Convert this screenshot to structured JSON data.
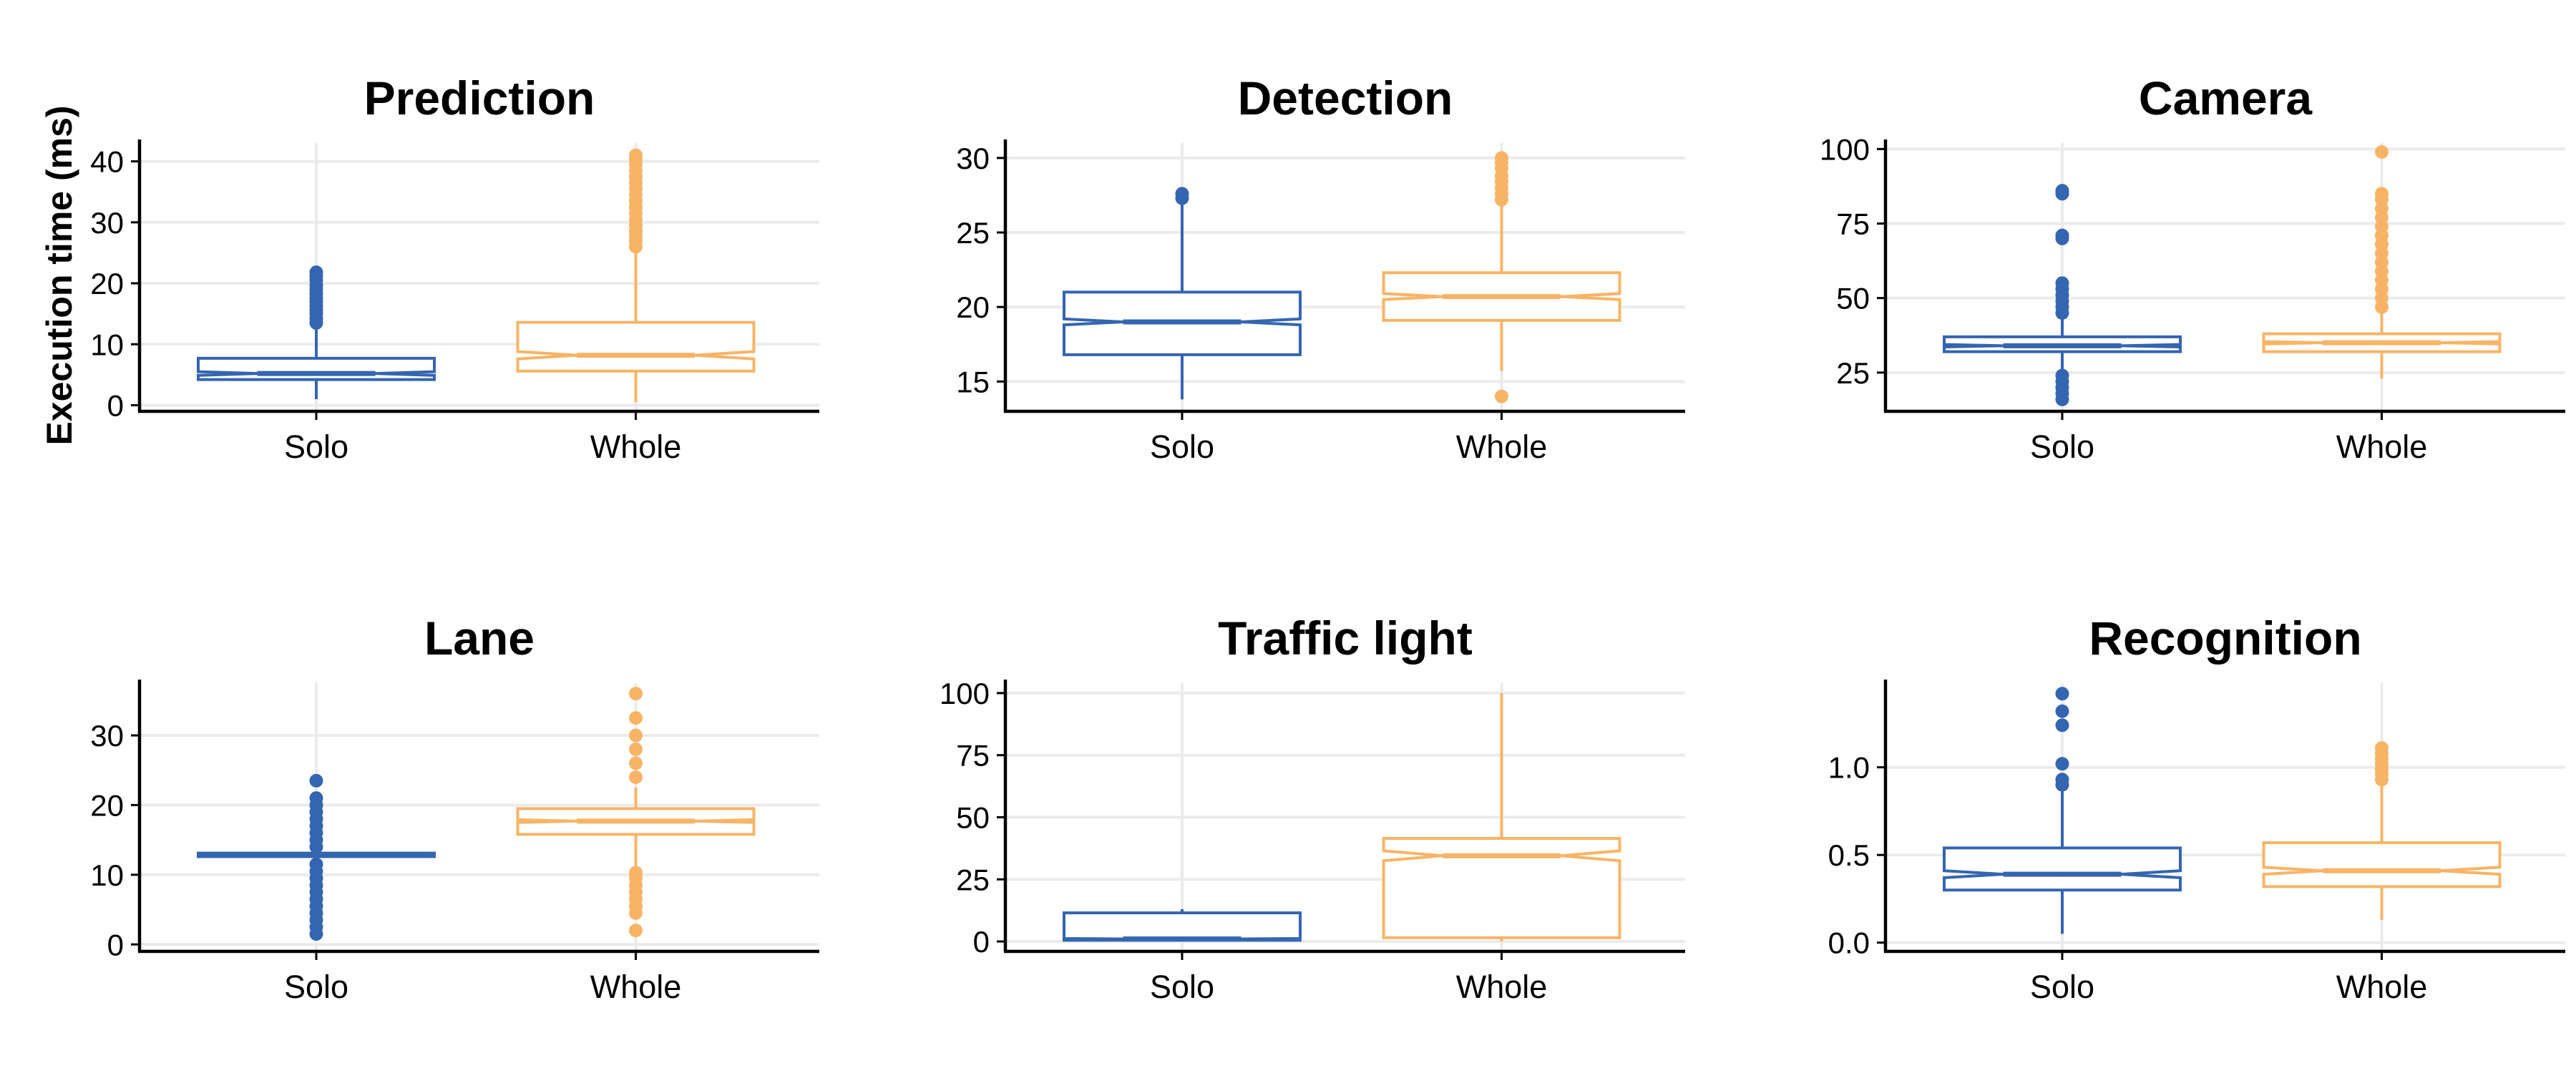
{
  "colors": {
    "solo": "#3465b0",
    "whole": "#f8b466",
    "grid": "#ebebeb",
    "axis": "#000000"
  },
  "y_axis_label": "Execution time (ms)",
  "chart_data": [
    {
      "type": "box",
      "title": "Prediction",
      "categories": [
        "Solo",
        "Whole"
      ],
      "ylim": [
        -1,
        43
      ],
      "yticks": [
        0,
        10,
        20,
        30,
        40
      ],
      "boxes": [
        {
          "category": "Solo",
          "whisker_low": 1,
          "q1": 4.2,
          "median": 5.2,
          "q3": 7.7,
          "whisker_high": 13,
          "notch": [
            4.9,
            5.5
          ],
          "outliers": [
            13.5,
            14.2,
            15,
            15.6,
            16.3,
            17,
            17.6,
            18.3,
            19,
            19.7,
            20.5,
            21.2,
            21.8
          ]
        },
        {
          "category": "Whole",
          "whisker_low": 0.5,
          "q1": 5.6,
          "median": 8.2,
          "q3": 13.6,
          "whisker_high": 25,
          "notch": [
            7.6,
            8.8
          ],
          "outliers": [
            26,
            27,
            27.8,
            28.6,
            29.5,
            30.5,
            31.5,
            32.5,
            33.5,
            34.5,
            35.5,
            36.5,
            37.5,
            38.5,
            39.5,
            40.3,
            41
          ]
        }
      ]
    },
    {
      "type": "box",
      "title": "Detection",
      "categories": [
        "Solo",
        "Whole"
      ],
      "ylim": [
        13,
        31
      ],
      "yticks": [
        15,
        20,
        25,
        30
      ],
      "boxes": [
        {
          "category": "Solo",
          "whisker_low": 13.8,
          "q1": 16.8,
          "median": 19,
          "q3": 21,
          "whisker_high": 27,
          "notch": [
            18.8,
            19.2
          ],
          "outliers": [
            27.3,
            27.6
          ]
        },
        {
          "category": "Whole",
          "whisker_low": 15.7,
          "q1": 19.1,
          "median": 20.7,
          "q3": 22.3,
          "whisker_high": 27,
          "notch": [
            20.5,
            20.9
          ],
          "outliers": [
            14,
            27.2,
            27.6,
            28,
            28.4,
            28.8,
            29.3,
            29.7,
            30
          ]
        }
      ]
    },
    {
      "type": "box",
      "title": "Camera",
      "categories": [
        "Solo",
        "Whole"
      ],
      "ylim": [
        12,
        102
      ],
      "yticks": [
        25,
        50,
        75,
        100
      ],
      "boxes": [
        {
          "category": "Solo",
          "whisker_low": 26,
          "q1": 32,
          "median": 34,
          "q3": 37,
          "whisker_high": 44,
          "notch": [
            33.6,
            34.4
          ],
          "outliers": [
            16,
            18,
            20,
            22,
            24,
            45,
            47,
            49,
            51,
            53,
            55,
            70,
            71,
            85,
            86
          ]
        },
        {
          "category": "Whole",
          "whisker_low": 23,
          "q1": 32,
          "median": 35,
          "q3": 38,
          "whisker_high": 46,
          "notch": [
            34.6,
            35.4
          ],
          "outliers": [
            47,
            50,
            53,
            56,
            59,
            62,
            65,
            68,
            71,
            74,
            77,
            80,
            83,
            85,
            99
          ]
        }
      ]
    },
    {
      "type": "box",
      "title": "Lane",
      "categories": [
        "Solo",
        "Whole"
      ],
      "ylim": [
        -1,
        37.5
      ],
      "yticks": [
        0,
        10,
        20,
        30
      ],
      "boxes": [
        {
          "category": "Solo",
          "whisker_low": 12.5,
          "q1": 12.6,
          "median": 12.8,
          "q3": 13.1,
          "whisker_high": 13.3,
          "notch": [
            12.7,
            12.9
          ],
          "outliers": [
            1.5,
            2.5,
            3.5,
            4.5,
            5.5,
            6.5,
            7.5,
            8.5,
            9.5,
            10.5,
            11.5,
            14,
            15,
            16,
            17,
            18,
            19,
            20,
            21,
            23.5
          ]
        },
        {
          "category": "Whole",
          "whisker_low": 11,
          "q1": 15.8,
          "median": 17.7,
          "q3": 19.5,
          "whisker_high": 22.5,
          "notch": [
            17.5,
            17.9
          ],
          "outliers": [
            2,
            4.5,
            5.5,
            6.5,
            7.5,
            8.5,
            9.5,
            10.3,
            24,
            26,
            28,
            30,
            32.5,
            36
          ]
        }
      ]
    },
    {
      "type": "box",
      "title": "Traffic light",
      "categories": [
        "Solo",
        "Whole"
      ],
      "ylim": [
        -4,
        104
      ],
      "yticks": [
        0,
        25,
        50,
        75,
        100
      ],
      "boxes": [
        {
          "category": "Solo",
          "whisker_low": 0,
          "q1": 0.5,
          "median": 1,
          "q3": 11.5,
          "whisker_high": 13,
          "notch": [
            0.8,
            1.2
          ],
          "outliers": []
        },
        {
          "category": "Whole",
          "whisker_low": 0,
          "q1": 1.5,
          "median": 34.5,
          "q3": 41.5,
          "whisker_high": 100,
          "notch": [
            32.5,
            36.5
          ],
          "outliers": []
        }
      ]
    },
    {
      "type": "box",
      "title": "Recognition",
      "categories": [
        "Solo",
        "Whole"
      ],
      "ylim": [
        -0.05,
        1.48
      ],
      "yticks": [
        "0.0",
        "0.5",
        "1.0"
      ],
      "boxes": [
        {
          "category": "Solo",
          "whisker_low": 0.05,
          "q1": 0.3,
          "median": 0.39,
          "q3": 0.54,
          "whisker_high": 0.88,
          "notch": [
            0.37,
            0.41
          ],
          "outliers": [
            0.9,
            0.93,
            1.02,
            1.24,
            1.32,
            1.42
          ]
        },
        {
          "category": "Whole",
          "whisker_low": 0.13,
          "q1": 0.32,
          "median": 0.41,
          "q3": 0.57,
          "whisker_high": 0.91,
          "notch": [
            0.39,
            0.43
          ],
          "outliers": [
            0.93,
            0.96,
            0.99,
            1.02,
            1.05,
            1.08,
            1.11
          ]
        }
      ]
    }
  ]
}
